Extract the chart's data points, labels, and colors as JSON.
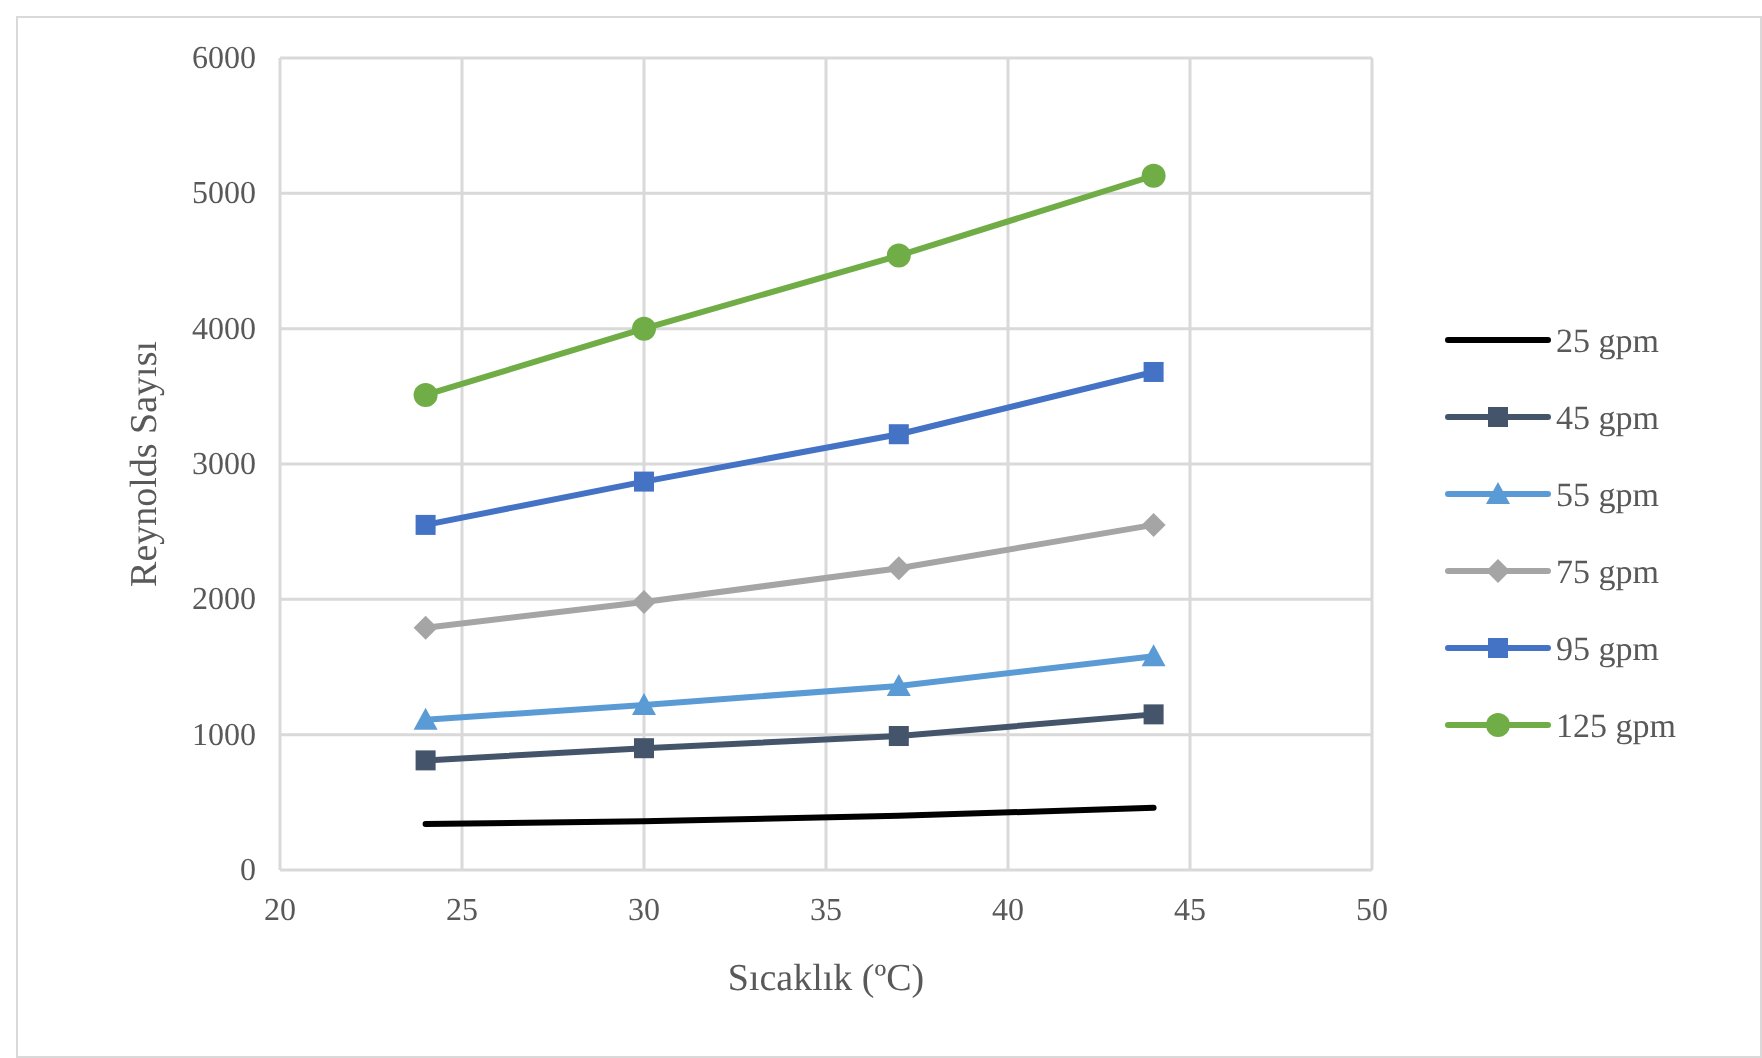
{
  "chart_data": {
    "type": "line",
    "xlabel": "Sıcaklık (ºC)",
    "ylabel": "Reynolds Sayısı",
    "x": [
      24,
      30,
      37,
      44
    ],
    "xlim": [
      20,
      50
    ],
    "xticks": [
      20,
      25,
      30,
      35,
      40,
      45,
      50
    ],
    "ylim": [
      0,
      6000
    ],
    "yticks": [
      0,
      1000,
      2000,
      3000,
      4000,
      5000,
      6000
    ],
    "grid": true,
    "legend": "right",
    "series": [
      {
        "name": "25 gpm",
        "color": "#000000",
        "marker": "none",
        "values": [
          340,
          360,
          400,
          460
        ]
      },
      {
        "name": "45 gpm",
        "color": "#44546a",
        "marker": "square",
        "values": [
          810,
          900,
          990,
          1150
        ]
      },
      {
        "name": "55 gpm",
        "color": "#5b9bd5",
        "marker": "triangle",
        "values": [
          1110,
          1220,
          1360,
          1580
        ]
      },
      {
        "name": "75 gpm",
        "color": "#a5a5a5",
        "marker": "diamond",
        "values": [
          1790,
          1980,
          2230,
          2550
        ]
      },
      {
        "name": "95 gpm",
        "color": "#4472c4",
        "marker": "square",
        "values": [
          2550,
          2870,
          3220,
          3680
        ]
      },
      {
        "name": "125 gpm",
        "color": "#70ad47",
        "marker": "circle",
        "values": [
          3510,
          4000,
          4540,
          5130
        ]
      }
    ]
  }
}
